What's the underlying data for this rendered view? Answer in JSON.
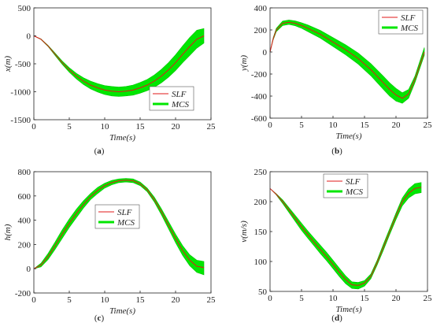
{
  "colors": {
    "slf": "#e01919",
    "mcs": "#00e600",
    "axis": "#222222"
  },
  "chart_data": [
    {
      "type": "line",
      "id": "a",
      "caption_letter": "a",
      "xlabel": "Time(s)",
      "ylabel": "x(m)",
      "xlim": [
        0,
        25
      ],
      "ylim": [
        -1500,
        500
      ],
      "xticks": [
        "0",
        "5",
        "10",
        "15",
        "20",
        "25"
      ],
      "yticks": [
        "-1500",
        "-1000",
        "-500",
        "0",
        "500"
      ],
      "legend": {
        "position": "bottom-right",
        "entries": [
          "SLF",
          "MCS"
        ]
      },
      "series": [
        {
          "name": "SLF",
          "x": [
            0,
            1,
            2,
            3,
            4,
            5,
            6,
            7,
            8,
            9,
            10,
            11,
            12,
            13,
            14,
            15,
            16,
            17,
            18,
            19,
            20,
            21,
            22,
            23,
            24
          ],
          "y": [
            0,
            -60,
            -180,
            -330,
            -480,
            -610,
            -720,
            -810,
            -880,
            -930,
            -970,
            -990,
            -1000,
            -990,
            -970,
            -930,
            -880,
            -810,
            -720,
            -610,
            -480,
            -330,
            -190,
            -60,
            0
          ]
        },
        {
          "name": "MCS",
          "x": [
            0,
            1,
            2,
            3,
            4,
            5,
            6,
            7,
            8,
            9,
            10,
            11,
            12,
            13,
            14,
            15,
            16,
            17,
            18,
            19,
            20,
            21,
            22,
            23,
            24
          ],
          "y_upper": [
            0,
            -55,
            -170,
            -310,
            -450,
            -570,
            -670,
            -750,
            -810,
            -855,
            -890,
            -905,
            -915,
            -905,
            -880,
            -835,
            -780,
            -700,
            -600,
            -480,
            -340,
            -180,
            -30,
            100,
            130
          ],
          "y_lower": [
            0,
            -65,
            -190,
            -350,
            -510,
            -650,
            -770,
            -870,
            -950,
            -1005,
            -1050,
            -1075,
            -1085,
            -1075,
            -1060,
            -1025,
            -980,
            -920,
            -840,
            -740,
            -620,
            -480,
            -350,
            -220,
            -130
          ]
        }
      ]
    },
    {
      "type": "line",
      "id": "b",
      "caption_letter": "b",
      "xlabel": "Time(s)",
      "ylabel": "y(m)",
      "xlim": [
        0,
        25
      ],
      "ylim": [
        -600,
        400
      ],
      "xticks": [
        "0",
        "5",
        "10",
        "15",
        "20",
        "25"
      ],
      "yticks": [
        "-600",
        "-400",
        "-200",
        "0",
        "200",
        "400"
      ],
      "legend": {
        "position": "top-right",
        "entries": [
          "SLF",
          "MCS"
        ]
      },
      "series": [
        {
          "name": "SLF",
          "x": [
            0,
            0.5,
            1,
            2,
            3,
            4,
            5,
            6,
            8,
            10,
            12,
            14,
            16,
            18,
            19,
            20,
            21,
            22,
            23,
            24.5
          ],
          "y": [
            0,
            120,
            200,
            260,
            270,
            260,
            240,
            215,
            160,
            90,
            20,
            -60,
            -160,
            -280,
            -340,
            -390,
            -420,
            -380,
            -250,
            0
          ]
        },
        {
          "name": "MCS",
          "x": [
            0,
            0.5,
            1,
            2,
            3,
            4,
            5,
            6,
            8,
            10,
            12,
            14,
            16,
            18,
            19,
            20,
            21,
            22,
            23,
            24.5
          ],
          "y_upper": [
            0,
            130,
            215,
            280,
            290,
            282,
            265,
            245,
            195,
            130,
            65,
            -10,
            -105,
            -220,
            -280,
            -330,
            -370,
            -340,
            -220,
            40
          ],
          "y_lower": [
            0,
            110,
            185,
            240,
            250,
            238,
            215,
            185,
            125,
            50,
            -25,
            -110,
            -215,
            -340,
            -400,
            -445,
            -465,
            -420,
            -280,
            -30
          ]
        }
      ]
    },
    {
      "type": "line",
      "id": "c",
      "caption_letter": "c",
      "xlabel": "Time(s)",
      "ylabel": "h(m)",
      "xlim": [
        0,
        25
      ],
      "ylim": [
        -200,
        800
      ],
      "xticks": [
        "0",
        "5",
        "10",
        "15",
        "20",
        "25"
      ],
      "yticks": [
        "-200",
        "0",
        "200",
        "400",
        "600",
        "800"
      ],
      "legend": {
        "position": "center",
        "entries": [
          "SLF",
          "MCS"
        ]
      },
      "series": [
        {
          "name": "SLF",
          "x": [
            0,
            1,
            2,
            3,
            4,
            5,
            6,
            7,
            8,
            9,
            10,
            11,
            12,
            13,
            14,
            15,
            16,
            17,
            18,
            19,
            20,
            21,
            22,
            23,
            24
          ],
          "y": [
            0,
            30,
            100,
            190,
            285,
            375,
            455,
            530,
            595,
            645,
            685,
            710,
            725,
            730,
            725,
            700,
            650,
            570,
            470,
            360,
            250,
            150,
            70,
            20,
            10
          ]
        },
        {
          "name": "MCS",
          "x": [
            0,
            1,
            2,
            3,
            4,
            5,
            6,
            7,
            8,
            9,
            10,
            11,
            12,
            13,
            14,
            15,
            16,
            17,
            18,
            19,
            20,
            21,
            22,
            23,
            24
          ],
          "y_upper": [
            0,
            45,
            125,
            220,
            320,
            410,
            490,
            560,
            620,
            670,
            705,
            728,
            740,
            745,
            740,
            715,
            665,
            590,
            495,
            390,
            285,
            190,
            115,
            70,
            60
          ],
          "y_lower": [
            0,
            15,
            75,
            160,
            250,
            340,
            420,
            500,
            570,
            620,
            665,
            692,
            710,
            715,
            710,
            685,
            635,
            550,
            445,
            330,
            215,
            110,
            25,
            -30,
            -50
          ]
        }
      ]
    },
    {
      "type": "line",
      "id": "d",
      "caption_letter": "d",
      "xlabel": "Time(s)",
      "ylabel": "v(m/s)",
      "xlim": [
        0,
        25
      ],
      "ylim": [
        50,
        250
      ],
      "xticks": [
        "0",
        "5",
        "10",
        "15",
        "20",
        "25"
      ],
      "yticks": [
        "50",
        "100",
        "150",
        "200",
        "250"
      ],
      "legend": {
        "position": "top-center",
        "entries": [
          "SLF",
          "MCS"
        ]
      },
      "series": [
        {
          "name": "SLF",
          "x": [
            0,
            1,
            2,
            3,
            4,
            5,
            6,
            7,
            8,
            9,
            10,
            11,
            12,
            13,
            14,
            15,
            16,
            17,
            18,
            19,
            20,
            21,
            22,
            23,
            24
          ],
          "y": [
            222,
            212,
            200,
            186,
            172,
            158,
            145,
            132,
            120,
            108,
            95,
            82,
            70,
            61,
            60,
            64,
            75,
            98,
            124,
            150,
            176,
            200,
            214,
            222,
            224
          ]
        },
        {
          "name": "MCS",
          "x": [
            0,
            1,
            2,
            3,
            4,
            5,
            6,
            7,
            8,
            9,
            10,
            11,
            12,
            13,
            14,
            15,
            16,
            17,
            18,
            19,
            20,
            21,
            22,
            23,
            24
          ],
          "y_upper": [
            222,
            213,
            203,
            190,
            177,
            164,
            151,
            139,
            127,
            115,
            102,
            89,
            76,
            66,
            65,
            68,
            79,
            102,
            129,
            155,
            181,
            206,
            221,
            230,
            232
          ],
          "y_lower": [
            222,
            211,
            197,
            182,
            167,
            152,
            139,
            126,
            113,
            101,
            88,
            75,
            63,
            55,
            54,
            59,
            71,
            94,
            119,
            145,
            170,
            193,
            206,
            213,
            215
          ]
        }
      ]
    }
  ]
}
